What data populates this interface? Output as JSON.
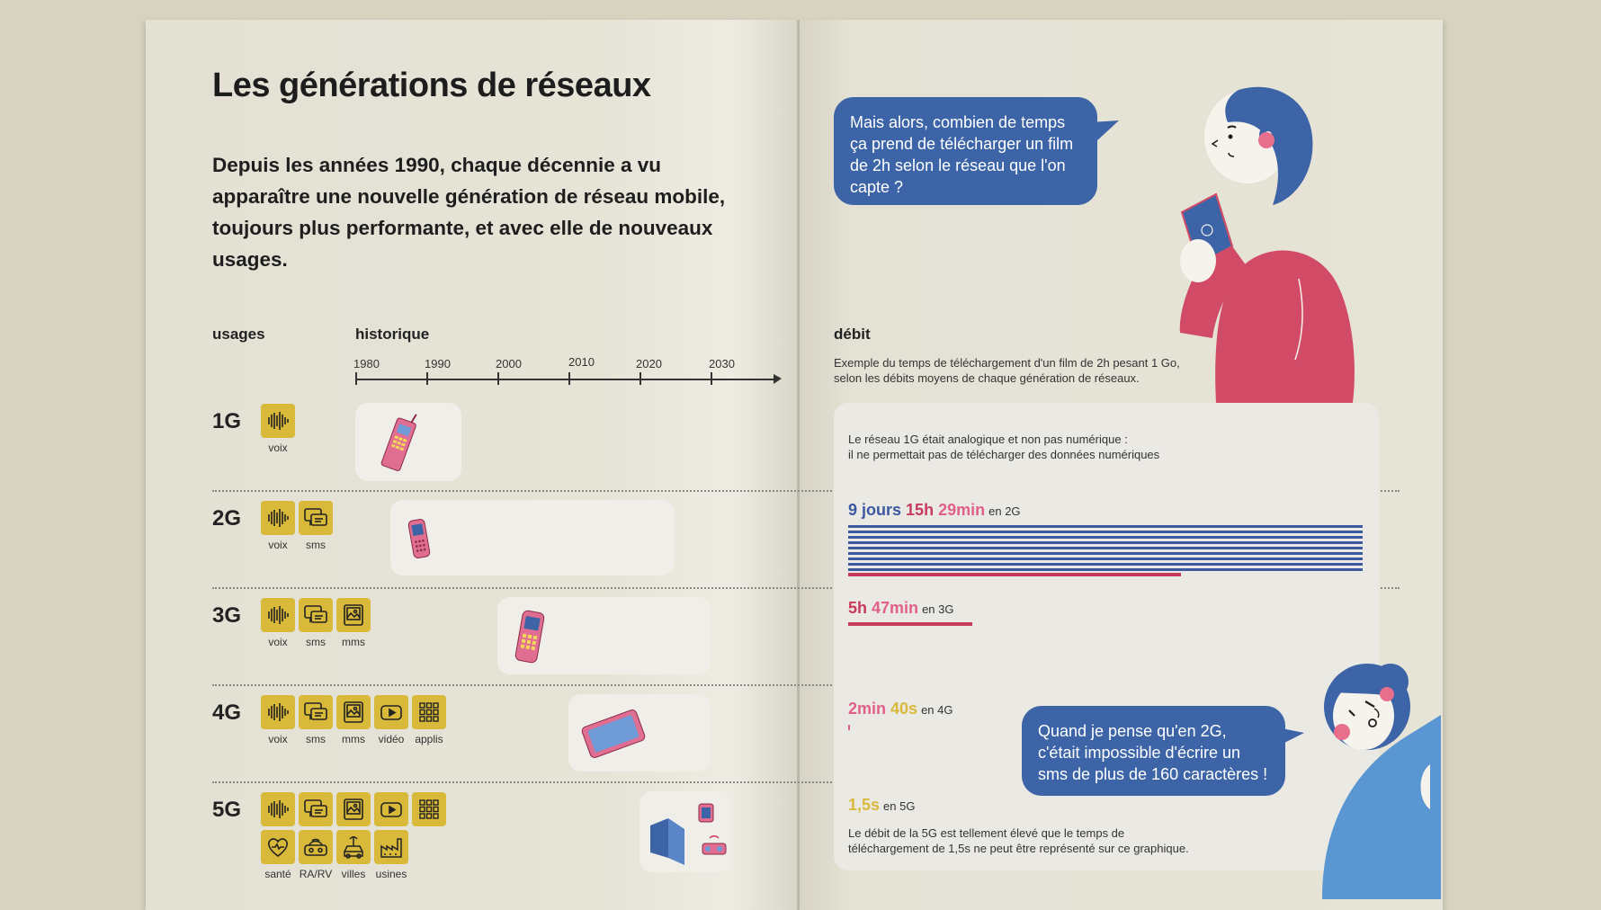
{
  "title": "Les générations de réseaux",
  "intro": "Depuis les années 1990, chaque décennie a vu apparaître une nouvelle génération de réseau mobile, toujours plus performante, et avec elle de nouveaux usages.",
  "columns": {
    "usages": "usages",
    "historique": "historique",
    "debit": "débit"
  },
  "timeline": [
    "1980",
    "1990",
    "2000",
    "2010",
    "2020",
    "2030"
  ],
  "generations": [
    {
      "name": "1G",
      "usages": [
        "voix"
      ]
    },
    {
      "name": "2G",
      "usages": [
        "voix",
        "sms"
      ]
    },
    {
      "name": "3G",
      "usages": [
        "voix",
        "sms",
        "mms"
      ]
    },
    {
      "name": "4G",
      "usages": [
        "voix",
        "sms",
        "mms",
        "vidéo",
        "applis"
      ]
    },
    {
      "name": "5G",
      "usages": [
        "santé",
        "RA/RV",
        "villes",
        "usines"
      ]
    }
  ],
  "bubbles": {
    "question": "Mais alors, combien de temps ça prend de télécharger un film de 2h selon le réseau que l'on capte ?",
    "answer": "Quand je pense qu'en 2G, c'était impossible d'écrire un sms de plus de 160 caractères !"
  },
  "debit": {
    "caption_line1": "Exemple du temps de téléchargement d'un film de 2h pesant 1 Go,",
    "caption_line2": "selon les débits moyens de chaque génération de réseaux.",
    "note_1g_line1": "Le réseau 1G était analogique et non pas numérique :",
    "note_1g_line2": "il ne permettait pas de télécharger des données numériques",
    "g2": {
      "days": "9 jours",
      "hours": "15h",
      "minutes": "29min",
      "suffix": "en 2G"
    },
    "g3": {
      "hours": "5h",
      "minutes": "47min",
      "suffix": "en 3G"
    },
    "g4": {
      "minutes": "2min",
      "seconds": "40s",
      "suffix": "en 4G"
    },
    "g5": {
      "seconds": "1,5s",
      "suffix": "en 5G"
    },
    "note_5g_line1": "Le débit de la 5G est tellement élevé que le temps de",
    "note_5g_line2": "téléchargement de 1,5s ne peut être représenté sur ce graphique."
  },
  "colors": {
    "icon_tile": "#d9b93a",
    "blue": "#3c64a6",
    "red": "#c83a5c",
    "pink": "#e1608a",
    "gold": "#d9b93a"
  }
}
